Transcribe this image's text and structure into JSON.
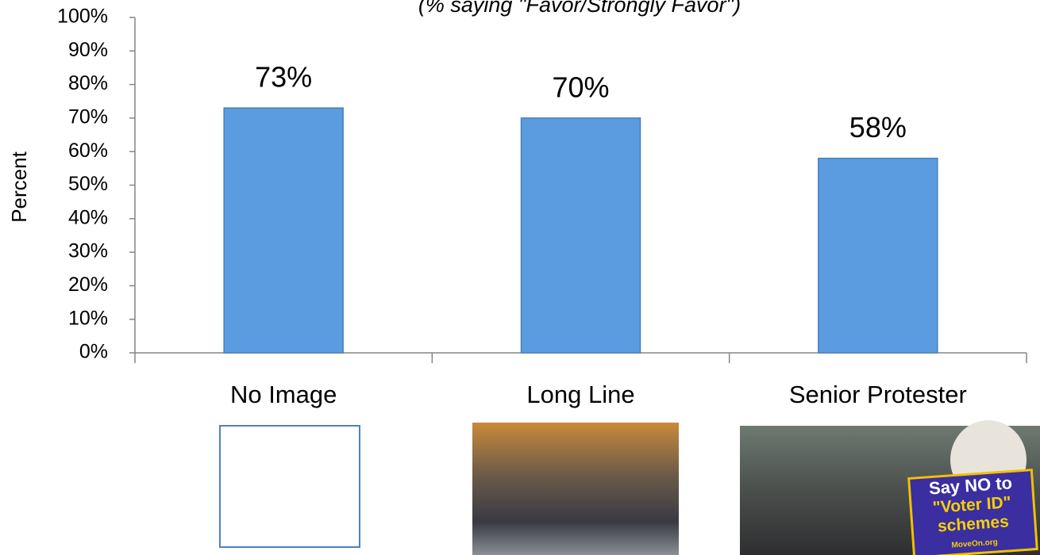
{
  "chart_data": {
    "type": "bar",
    "title": "(% saying \"Favor/Strongly Favor\")",
    "y_label": "Percent",
    "categories": [
      "No Image",
      "Long Line",
      "Senior Protester"
    ],
    "values": [
      73,
      70,
      58
    ],
    "value_labels": [
      "73%",
      "70%",
      "58%"
    ],
    "color": "#5b9be0",
    "ylim": [
      0,
      100
    ],
    "yticks": [
      {
        "value": 0,
        "label": "0%"
      },
      {
        "value": 10,
        "label": "10%"
      },
      {
        "value": 20,
        "label": "20%"
      },
      {
        "value": 30,
        "label": "30%"
      },
      {
        "value": 40,
        "label": "40%"
      },
      {
        "value": 50,
        "label": "50%"
      },
      {
        "value": 60,
        "label": "60%"
      },
      {
        "value": 70,
        "label": "70%"
      },
      {
        "value": 80,
        "label": "80%"
      },
      {
        "value": 90,
        "label": "90%"
      },
      {
        "value": 100,
        "label": "100%"
      }
    ],
    "grid": false
  },
  "images": {
    "sign": [
      "Say NO to",
      "\"Voter ID\"",
      "schemes",
      "MoveOn.org"
    ]
  }
}
